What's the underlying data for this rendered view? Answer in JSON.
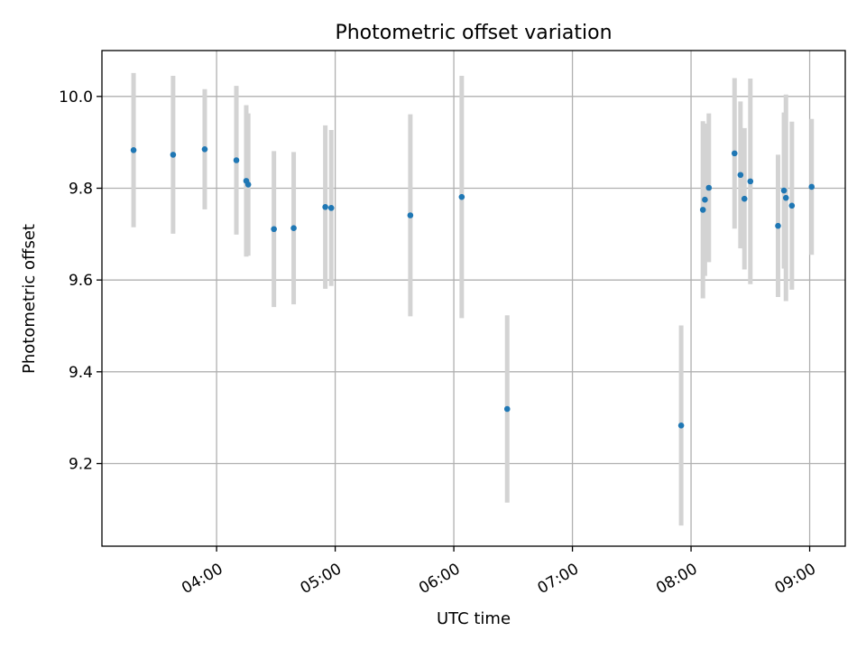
{
  "chart_data": {
    "type": "scatter",
    "title": "Photometric offset variation",
    "xlabel": "UTC time",
    "ylabel": "Photometric offset",
    "x_ticks": [
      "04:00",
      "05:00",
      "06:00",
      "07:00",
      "08:00",
      "09:00"
    ],
    "x_tick_hours": [
      4,
      5,
      6,
      7,
      8,
      9
    ],
    "y_ticks": [
      "9.2",
      "9.4",
      "9.6",
      "9.8",
      "10.0"
    ],
    "y_tick_values": [
      9.2,
      9.4,
      9.6,
      9.8,
      10.0
    ],
    "xlim": [
      "03:02",
      "09:18"
    ],
    "ylim": [
      9.02,
      10.1
    ],
    "grid": true,
    "marker_color": "#1f77b4",
    "errorbar_color": "#d3d3d3",
    "points": [
      {
        "time": "03:18",
        "y": 9.883,
        "yerr": 0.168
      },
      {
        "time": "03:38",
        "y": 9.873,
        "yerr": 0.172
      },
      {
        "time": "03:54",
        "y": 9.885,
        "yerr": 0.131
      },
      {
        "time": "04:10",
        "y": 9.861,
        "yerr": 0.162
      },
      {
        "time": "04:15",
        "y": 9.816,
        "yerr": 0.165
      },
      {
        "time": "04:16",
        "y": 9.808,
        "yerr": 0.155
      },
      {
        "time": "04:29",
        "y": 9.711,
        "yerr": 0.17
      },
      {
        "time": "04:39",
        "y": 9.713,
        "yerr": 0.166
      },
      {
        "time": "04:55",
        "y": 9.759,
        "yerr": 0.178
      },
      {
        "time": "04:58",
        "y": 9.757,
        "yerr": 0.17
      },
      {
        "time": "05:38",
        "y": 9.741,
        "yerr": 0.22
      },
      {
        "time": "06:04",
        "y": 9.781,
        "yerr": 0.264
      },
      {
        "time": "06:27",
        "y": 9.319,
        "yerr": 0.204
      },
      {
        "time": "07:55",
        "y": 9.283,
        "yerr": 0.218
      },
      {
        "time": "08:06",
        "y": 9.753,
        "yerr": 0.193
      },
      {
        "time": "08:07",
        "y": 9.775,
        "yerr": 0.166
      },
      {
        "time": "08:09",
        "y": 9.801,
        "yerr": 0.162
      },
      {
        "time": "08:22",
        "y": 9.876,
        "yerr": 0.164
      },
      {
        "time": "08:25",
        "y": 9.829,
        "yerr": 0.16
      },
      {
        "time": "08:27",
        "y": 9.777,
        "yerr": 0.154
      },
      {
        "time": "08:30",
        "y": 9.815,
        "yerr": 0.224
      },
      {
        "time": "08:44",
        "y": 9.718,
        "yerr": 0.155
      },
      {
        "time": "08:47",
        "y": 9.795,
        "yerr": 0.17
      },
      {
        "time": "08:48",
        "y": 9.779,
        "yerr": 0.225
      },
      {
        "time": "08:51",
        "y": 9.762,
        "yerr": 0.183
      },
      {
        "time": "09:01",
        "y": 9.803,
        "yerr": 0.148
      }
    ]
  }
}
